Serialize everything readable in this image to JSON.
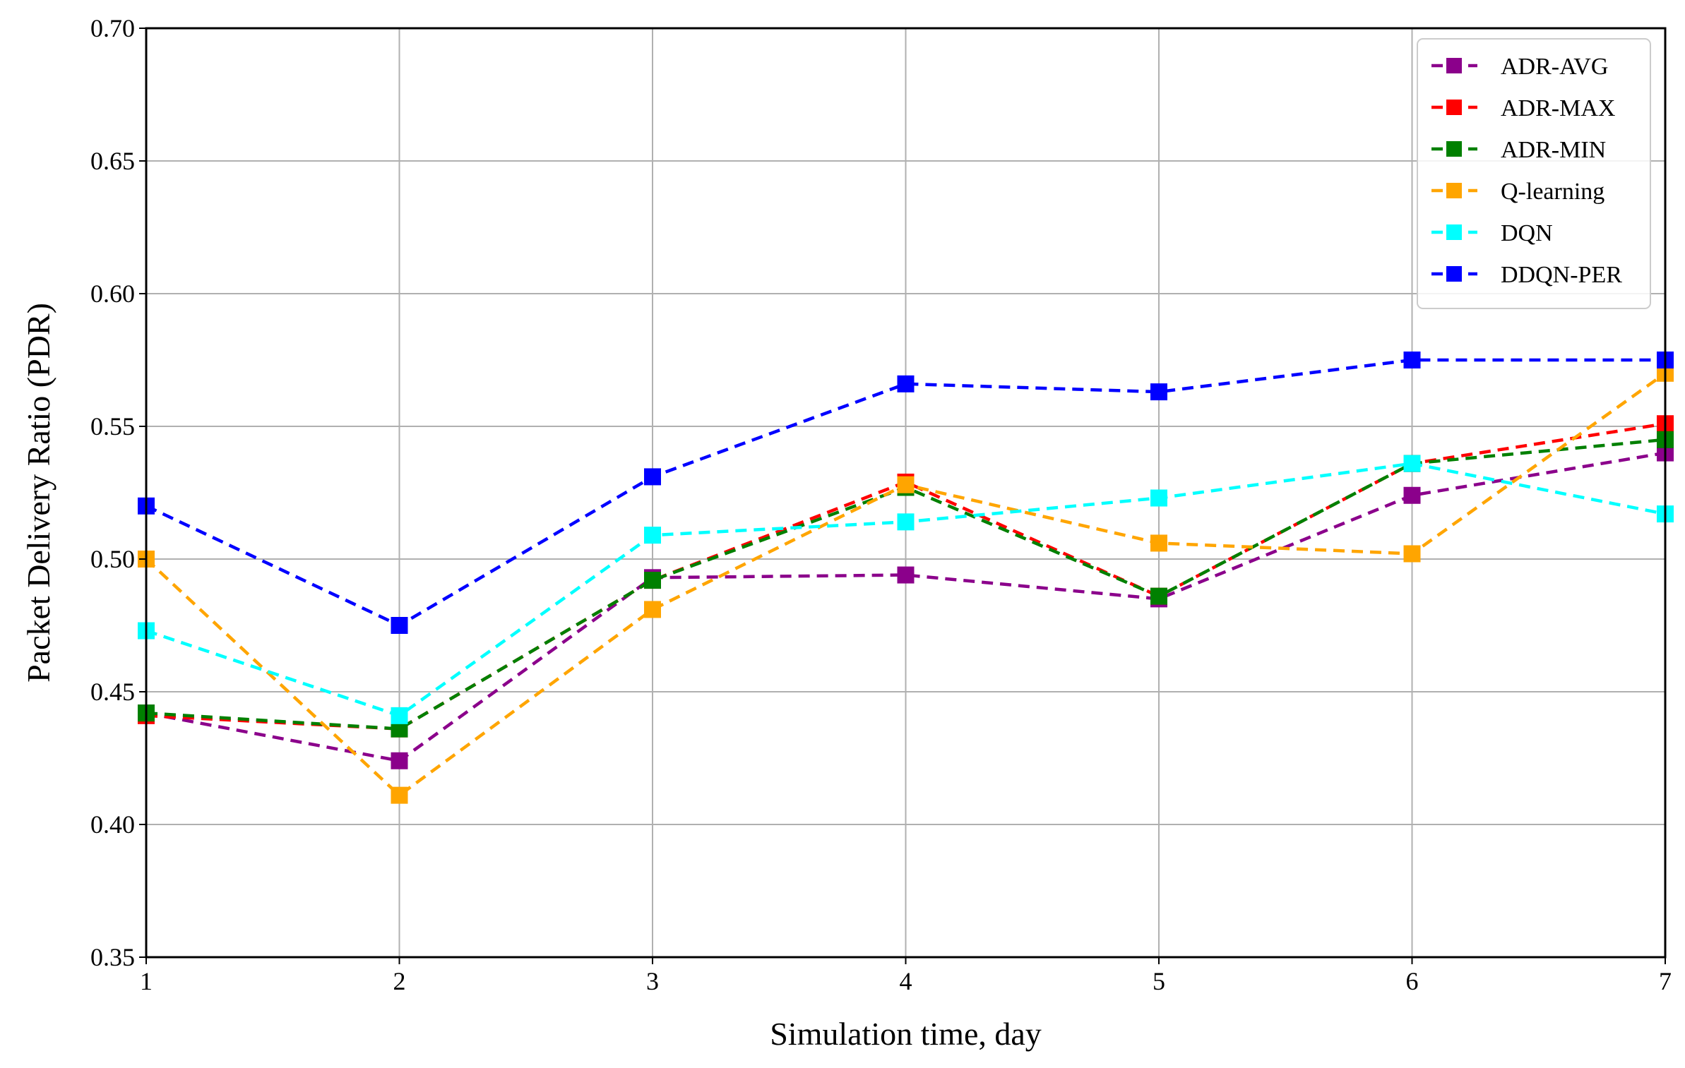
{
  "chart_data": {
    "type": "line",
    "title": "",
    "xlabel": "Simulation time, day",
    "ylabel": "Packet Delivery Ratio (PDR)",
    "xlim": [
      1,
      7
    ],
    "ylim": [
      0.35,
      0.7
    ],
    "x": [
      1,
      2,
      3,
      4,
      5,
      6,
      7
    ],
    "xticks": [
      "1",
      "2",
      "3",
      "4",
      "5",
      "6",
      "7"
    ],
    "yticks": [
      "0.35",
      "0.40",
      "0.45",
      "0.50",
      "0.55",
      "0.60",
      "0.65",
      "0.70"
    ],
    "grid": true,
    "legend_position": "top-right",
    "line_style": "dashed",
    "marker": "square",
    "series": [
      {
        "name": "ADR-AVG",
        "color": "#8B008B",
        "values": [
          0.442,
          0.424,
          0.493,
          0.494,
          0.485,
          0.524,
          0.54
        ]
      },
      {
        "name": "ADR-MAX",
        "color": "#FF0000",
        "values": [
          0.441,
          0.436,
          0.492,
          0.529,
          0.486,
          0.536,
          0.551
        ]
      },
      {
        "name": "ADR-MIN",
        "color": "#008000",
        "values": [
          0.442,
          0.436,
          0.492,
          0.527,
          0.486,
          0.536,
          0.545
        ]
      },
      {
        "name": "Q-learning",
        "color": "#FFA500",
        "values": [
          0.5,
          0.411,
          0.481,
          0.528,
          0.506,
          0.502,
          0.57
        ]
      },
      {
        "name": "DQN",
        "color": "#00FFFF",
        "values": [
          0.473,
          0.441,
          0.509,
          0.514,
          0.523,
          0.536,
          0.517
        ]
      },
      {
        "name": "DDQN-PER",
        "color": "#0000FF",
        "values": [
          0.52,
          0.475,
          0.531,
          0.566,
          0.563,
          0.575,
          0.575
        ]
      }
    ]
  }
}
